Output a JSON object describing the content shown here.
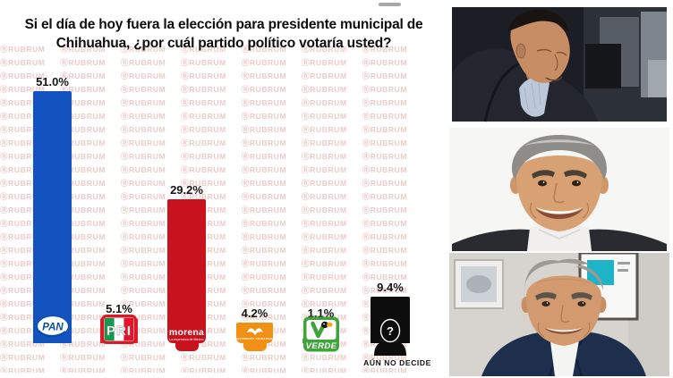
{
  "chart_data": {
    "type": "bar",
    "title": "Si el día de hoy fuera la elección para presidente municipal de Chihuahua, ¿por cuál partido político votaría usted?",
    "categories": [
      "PAN",
      "PRI",
      "MORENA",
      "Movimiento Ciudadano",
      "Partido Verde",
      "Aún no decide"
    ],
    "values": [
      51.0,
      5.1,
      29.2,
      4.2,
      1.1,
      9.4
    ],
    "value_labels": [
      "51.0%",
      "5.1%",
      "29.2%",
      "4.2%",
      "1.1%",
      "9.4%"
    ],
    "colors": [
      "#1353c0",
      "#e61e2b",
      "#c8121e",
      "#f09015",
      "#3fa43a",
      "#0d0d0d"
    ],
    "unit": "%",
    "ylim": [
      0,
      55
    ],
    "grid": false,
    "legend": false,
    "annotation": "AÚN NO DECIDE"
  },
  "watermark": {
    "text": "ⓇRUBRUM",
    "color": "#edcbc9"
  },
  "logos": {
    "pan": "PAN",
    "pri": "PRI",
    "morena": "morena",
    "morena_sub": "La esperanza de México",
    "mc": "MOVIMIENTO CIUDADANO",
    "verde": "VERDE",
    "undecided_mark": "?"
  },
  "photos": {
    "items": [
      "candidate-portrait-dark-office",
      "candidate-portrait-white-background",
      "candidate-portrait-office"
    ]
  }
}
